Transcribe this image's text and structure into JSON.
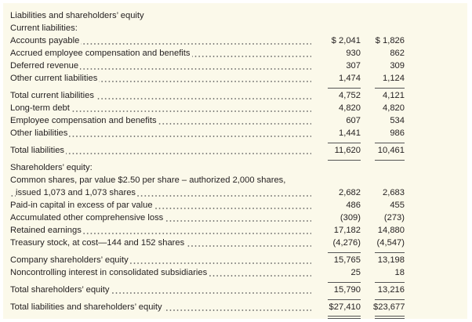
{
  "rows": [
    {
      "label": "Liabilities and shareholders’ equity",
      "dots": false
    },
    {
      "label": "Current liabilities:",
      "dots": false
    },
    {
      "label": "Accounts payable",
      "v1": "$ 2,041",
      "v2": "$ 1,826",
      "dots": true
    },
    {
      "label": "Accrued employee compensation and benefits",
      "v1": "930",
      "v2": "862",
      "dots": true
    },
    {
      "label": "Deferred revenue",
      "v1": "307",
      "v2": "309",
      "dots": true
    },
    {
      "label": "Other current liabilities",
      "v1": "1,474",
      "v2": "1,124",
      "dots": true,
      "line": "ul"
    },
    {
      "label": "Total current liabilities",
      "v1": "4,752",
      "v2": "4,121",
      "dots": true,
      "gap": true
    },
    {
      "label": "Long-term debt",
      "v1": "4,820",
      "v2": "4,820",
      "dots": true
    },
    {
      "label": "Employee compensation and benefits",
      "v1": "607",
      "v2": "534",
      "dots": true
    },
    {
      "label": "Other liabilities",
      "v1": "1,441",
      "v2": "986",
      "dots": true,
      "line": "ul"
    },
    {
      "label": "Total liabilities",
      "v1": "11,620",
      "v2": "10,461",
      "dots": true,
      "gap": true,
      "line": "ul"
    },
    {
      "label": "Shareholders’ equity:",
      "dots": false,
      "gap": true
    },
    {
      "label": "Common shares, par value $2.50 per share – authorized 2,000 shares,",
      "dots": false
    },
    {
      "label": "issued 1,073 and 1,073 shares",
      "v1": "2,682",
      "v2": "2,683",
      "dots": true,
      "indent": true
    },
    {
      "label": "Paid-in capital in excess of par value",
      "v1": "486",
      "v2": "455",
      "dots": true
    },
    {
      "label": "Accumulated other comprehensive loss",
      "v1": "(309)",
      "v2": "(273)",
      "dots": true
    },
    {
      "label": "Retained earnings",
      "v1": "17,182",
      "v2": "14,880",
      "dots": true
    },
    {
      "label": "Treasury stock, at cost—144 and 152 shares",
      "v1": "(4,276)",
      "v2": "(4,547)",
      "dots": true,
      "line": "ul"
    },
    {
      "label": "Company shareholders’ equity",
      "v1": "15,765",
      "v2": "13,198",
      "dots": true,
      "gap": true
    },
    {
      "label": "Noncontrolling interest in consolidated subsidiaries",
      "v1": "25",
      "v2": "18",
      "dots": true,
      "line": "ul"
    },
    {
      "label": "Total shareholders’ equity",
      "v1": "15,790",
      "v2": "13,216",
      "dots": true,
      "gap": true,
      "line": "ul"
    },
    {
      "label": "Total liabilities and shareholders’ equity",
      "v1": "$27,410",
      "v2": "$23,677",
      "dots": true,
      "gap": true,
      "line": "dul"
    }
  ]
}
